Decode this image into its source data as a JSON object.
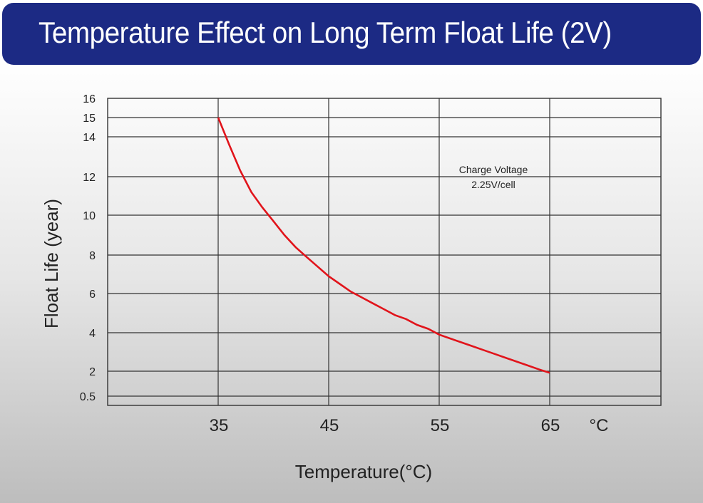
{
  "title": "Temperature Effect on Long Term Float Life (2V)",
  "colors": {
    "title_bar": "#1c2a84",
    "curve": "#e1141b",
    "grid": "#333333"
  },
  "chart_data": {
    "type": "line",
    "title": "Temperature Effect on Long Term Float Life (2V)",
    "xlabel": "Temperature(°C)",
    "ylabel": "Float Life (year)",
    "x_unit": "°C",
    "xlim": [
      25,
      75
    ],
    "y_ticks": [
      "0.5",
      "2",
      "4",
      "6",
      "8",
      "10",
      "12",
      "14",
      "15",
      "16"
    ],
    "x_ticks": [
      "35",
      "45",
      "55",
      "65"
    ],
    "annotation": [
      "Charge Voltage",
      "2.25V/cell"
    ],
    "grid": true,
    "series": [
      {
        "x": [
          35,
          36,
          37,
          38,
          39,
          40,
          41,
          42,
          43,
          44,
          45,
          46,
          47,
          48,
          49,
          50,
          51,
          52,
          53,
          54,
          55,
          56,
          57,
          58,
          59,
          60,
          61,
          62,
          63,
          64,
          65
        ],
        "y": [
          15.0,
          13.6,
          12.3,
          11.2,
          10.4,
          9.7,
          9.0,
          8.4,
          7.9,
          7.4,
          6.9,
          6.5,
          6.1,
          5.8,
          5.5,
          5.2,
          4.9,
          4.7,
          4.4,
          4.2,
          3.9,
          3.7,
          3.5,
          3.3,
          3.1,
          2.9,
          2.7,
          2.5,
          2.3,
          2.1,
          1.9
        ]
      }
    ]
  }
}
